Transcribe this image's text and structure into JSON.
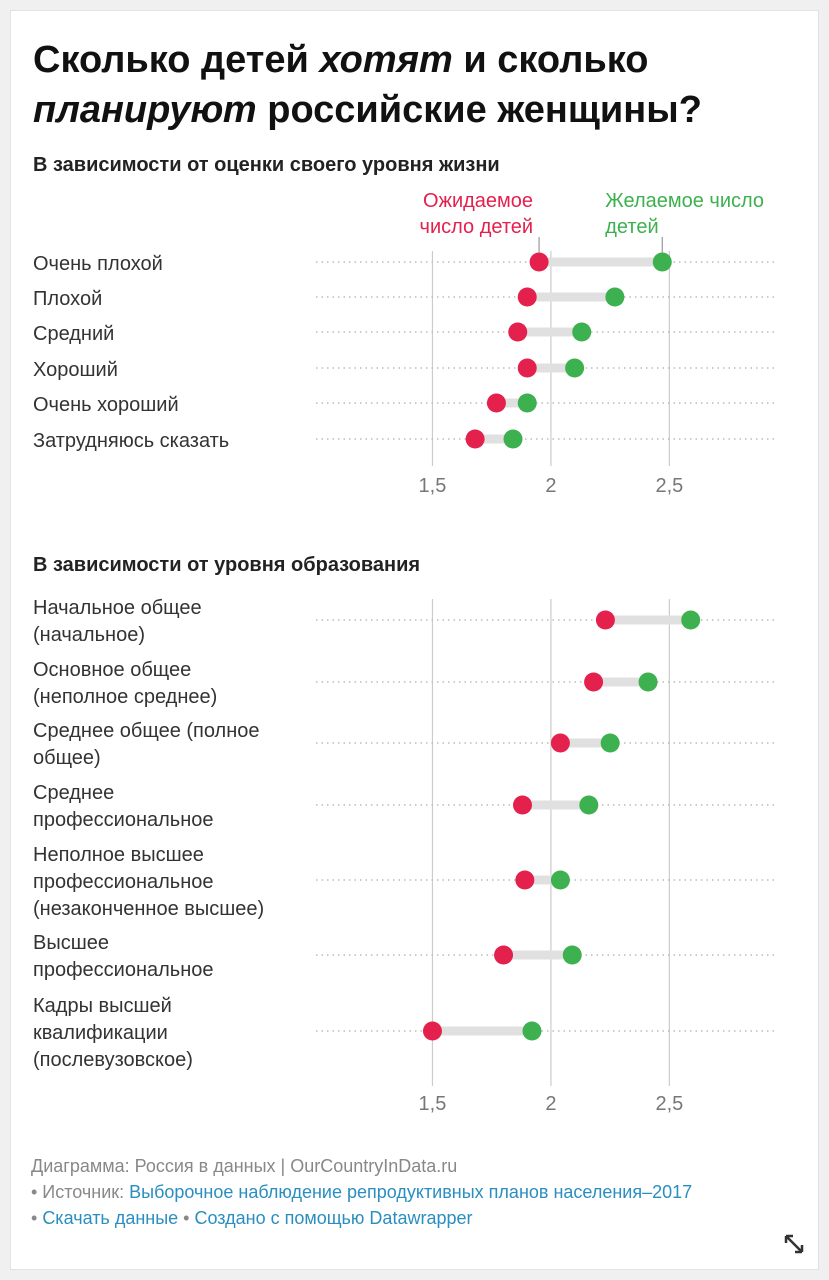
{
  "title": {
    "part1": "Сколько детей ",
    "em1": "хотят",
    "part2": " и сколько ",
    "em2": "планируют",
    "part3": " российские женщины?"
  },
  "colors": {
    "expected": "#e4214c",
    "desired": "#3db14f",
    "connector": "#e0e0e0",
    "grid": "#cccccc",
    "dots": "#bbbbbb"
  },
  "legend": {
    "expected": "Ожидаемое\nчисло детей",
    "desired": "Желаемое число\nдетей"
  },
  "chart_data": [
    {
      "type": "dot-range",
      "title": "В зависимости от оценки своего уровня жизни",
      "xlim": [
        1,
        2.95
      ],
      "ticks": [
        1.5,
        2,
        2.5
      ],
      "tick_labels": [
        "1,5",
        "2",
        "2,5"
      ],
      "series": [
        "Ожидаемое число детей",
        "Желаемое число детей"
      ],
      "rows": [
        {
          "label": "Очень плохой",
          "expected": 1.95,
          "desired": 2.47
        },
        {
          "label": "Плохой",
          "expected": 1.9,
          "desired": 2.27
        },
        {
          "label": "Средний",
          "expected": 1.86,
          "desired": 2.13
        },
        {
          "label": "Хороший",
          "expected": 1.9,
          "desired": 2.1
        },
        {
          "label": "Очень хороший",
          "expected": 1.77,
          "desired": 1.9
        },
        {
          "label": "Затрудняюсь сказать",
          "expected": 1.68,
          "desired": 1.84
        }
      ]
    },
    {
      "type": "dot-range",
      "title": "В зависимости от уровня образования",
      "xlim": [
        1,
        2.95
      ],
      "ticks": [
        1.5,
        2,
        2.5
      ],
      "tick_labels": [
        "1,5",
        "2",
        "2,5"
      ],
      "series": [
        "Ожидаемое число детей",
        "Желаемое число детей"
      ],
      "rows": [
        {
          "label": "Начальное общее\n(начальное)",
          "expected": 2.23,
          "desired": 2.59
        },
        {
          "label": "Основное общее\n(неполное среднее)",
          "expected": 2.18,
          "desired": 2.41
        },
        {
          "label": "Среднее общее (полное\nобщее)",
          "expected": 2.04,
          "desired": 2.25
        },
        {
          "label": "Среднее\nпрофессиональное",
          "expected": 1.88,
          "desired": 2.16
        },
        {
          "label": "Неполное высшее\nпрофессиональное\n(незаконченное высшее)",
          "expected": 1.89,
          "desired": 2.04
        },
        {
          "label": "Высшее\nпрофессиональное",
          "expected": 1.8,
          "desired": 2.09
        },
        {
          "label": "Кадры высшей\nквалификации\n(послевузовское)",
          "expected": 1.5,
          "desired": 1.92
        }
      ]
    }
  ],
  "footer": {
    "line1": "Диаграмма: Россия в данных | OurCountryInData.ru",
    "source_prefix": "• Источник: ",
    "source_link": "Выборочное наблюдение репродуктивных планов населения–2017",
    "bullet": "• ",
    "download_link": "Скачать данные",
    "sep": " • ",
    "made_with_link": "Создано с помощью Datawrapper"
  },
  "icons": {
    "resize": "resize-icon"
  }
}
